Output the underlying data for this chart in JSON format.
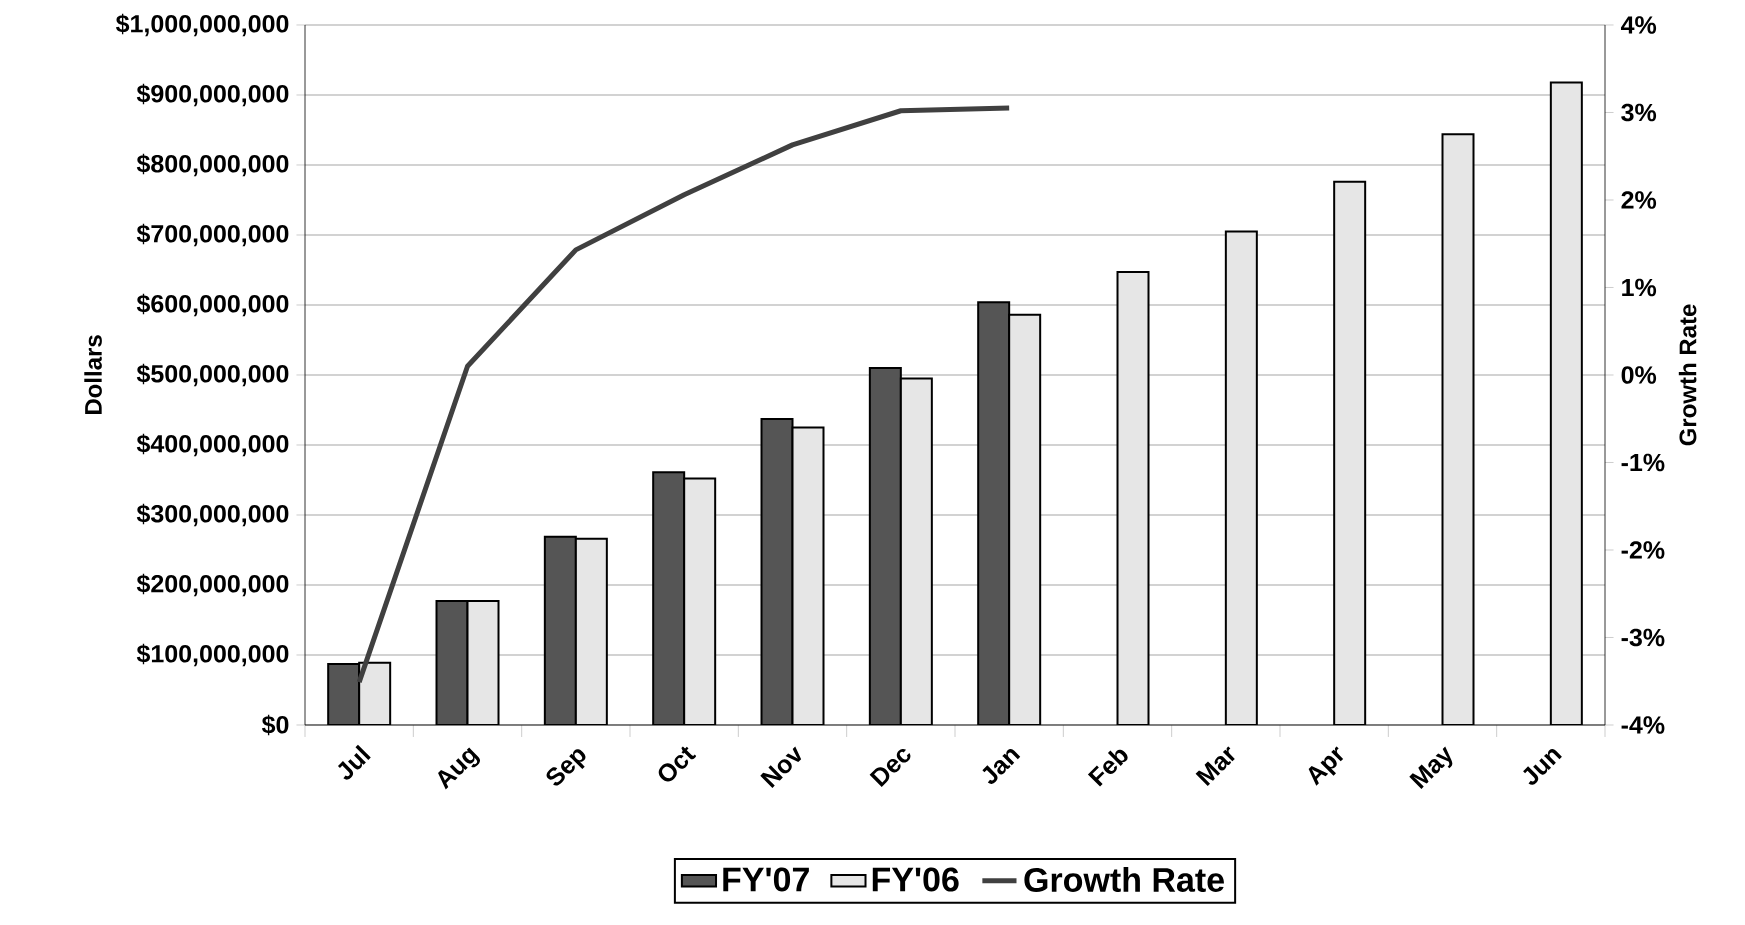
{
  "chart_data": {
    "type": "bar",
    "categories": [
      "Jul",
      "Aug",
      "Sep",
      "Oct",
      "Nov",
      "Dec",
      "Jan",
      "Feb",
      "Mar",
      "Apr",
      "May",
      "Jun"
    ],
    "series": [
      {
        "name": "FY'07",
        "color": "#555555",
        "values": [
          87000000,
          177000000,
          269000000,
          361000000,
          437000000,
          510000000,
          604000000,
          null,
          null,
          null,
          null,
          null
        ]
      },
      {
        "name": "FY'06",
        "color": "#e6e6e6",
        "values": [
          89000000,
          177000000,
          266000000,
          352000000,
          425000000,
          495000000,
          586000000,
          647000000,
          705000000,
          776000000,
          844000000,
          918000000
        ]
      },
      {
        "name": "Growth Rate",
        "type": "line",
        "axis": "y2",
        "color": "#404040",
        "values": [
          -3.51,
          0.1,
          1.43,
          2.06,
          2.63,
          3.02,
          3.05,
          null,
          null,
          null,
          null,
          null
        ]
      }
    ],
    "ylabel": "Dollars",
    "y2label": "Growth Rate",
    "ylim": [
      0,
      1000000000
    ],
    "yticks": [
      {
        "value": 0,
        "label": "$0"
      },
      {
        "value": 100000000,
        "label": "$100,000,000"
      },
      {
        "value": 200000000,
        "label": "$200,000,000"
      },
      {
        "value": 300000000,
        "label": "$300,000,000"
      },
      {
        "value": 400000000,
        "label": "$400,000,000"
      },
      {
        "value": 500000000,
        "label": "$500,000,000"
      },
      {
        "value": 600000000,
        "label": "$600,000,000"
      },
      {
        "value": 700000000,
        "label": "$700,000,000"
      },
      {
        "value": 800000000,
        "label": "$800,000,000"
      },
      {
        "value": 900000000,
        "label": "$900,000,000"
      },
      {
        "value": 1000000000,
        "label": "$1,000,000,000"
      }
    ],
    "y2lim": [
      -4,
      4
    ],
    "y2ticks": [
      {
        "value": -4,
        "label": "-4%"
      },
      {
        "value": -3,
        "label": "-3%"
      },
      {
        "value": -2,
        "label": "-2%"
      },
      {
        "value": -1,
        "label": "-1%"
      },
      {
        "value": 0,
        "label": "0%"
      },
      {
        "value": 1,
        "label": "1%"
      },
      {
        "value": 2,
        "label": "2%"
      },
      {
        "value": 3,
        "label": "3%"
      },
      {
        "value": 4,
        "label": "4%"
      }
    ],
    "grid": "y",
    "legend": "bottom"
  }
}
